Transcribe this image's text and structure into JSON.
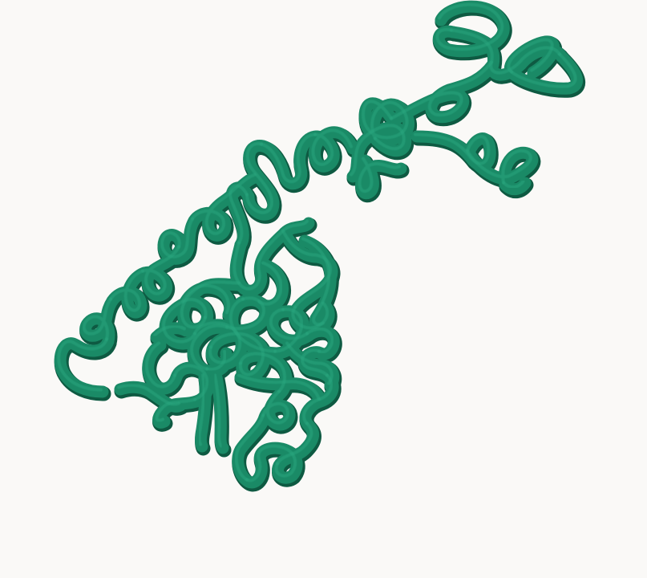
{
  "scene": {
    "subject": "protein-backbone-tube",
    "render_style": "cartoon-tube",
    "colors": {
      "background": "#faf9f7",
      "tube": "#1a8a66",
      "tube_shadow": "#0e5a42",
      "tube_highlight": "#2aa57d"
    }
  }
}
